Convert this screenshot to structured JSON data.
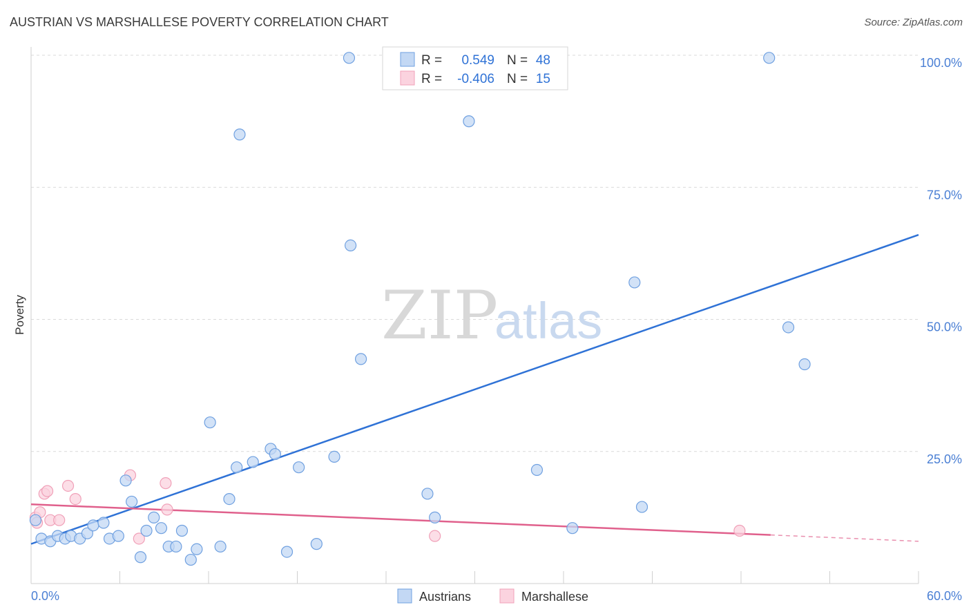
{
  "title": "AUSTRIAN VS MARSHALLESE POVERTY CORRELATION CHART",
  "source": "Source: ZipAtlas.com",
  "watermark": {
    "zip": "ZIP",
    "atlas": "atlas"
  },
  "colors": {
    "austrians": "#6fa0e0",
    "austrians_fill": "#c3d8f4",
    "austrians_line": "#2f72d6",
    "marshallese": "#f0a0b8",
    "marshallese_fill": "#fbd3df",
    "marshallese_line": "#e0608c",
    "tick": "#4a7fd4"
  },
  "legend": {
    "rows": [
      {
        "r_label": "R =",
        "r_value": "0.549",
        "n_label": "N =",
        "n_value": "48"
      },
      {
        "r_label": "R =",
        "r_value": "-0.406",
        "n_label": "N =",
        "n_value": "15"
      }
    ]
  },
  "bottom_legend": {
    "austrians": "Austrians",
    "marshallese": "Marshallese"
  },
  "chart_data": {
    "type": "scatter",
    "xlabel": "",
    "ylabel": "Poverty",
    "xlim": [
      0,
      60
    ],
    "ylim": [
      0,
      100
    ],
    "x_tick_labels": [
      "0.0%",
      "60.0%"
    ],
    "y_tick_labels": [
      "100.0%",
      "75.0%",
      "50.0%",
      "25.0%"
    ],
    "y_ticks": [
      100,
      75,
      50,
      25
    ],
    "grid": true,
    "legend_position": "top-center",
    "series": [
      {
        "name": "Austrians",
        "r": 0.549,
        "n": 48,
        "trend": {
          "x0": 0,
          "y0": 7.5,
          "x1": 60,
          "y1": 66
        },
        "points": [
          [
            0.3,
            12
          ],
          [
            0.7,
            8.5
          ],
          [
            1.3,
            8
          ],
          [
            1.8,
            9
          ],
          [
            2.3,
            8.5
          ],
          [
            2.7,
            9
          ],
          [
            3.3,
            8.5
          ],
          [
            3.8,
            9.5
          ],
          [
            4.2,
            11
          ],
          [
            4.9,
            11.5
          ],
          [
            5.3,
            8.5
          ],
          [
            5.9,
            9
          ],
          [
            6.4,
            19.5
          ],
          [
            6.8,
            15.5
          ],
          [
            7.4,
            5
          ],
          [
            7.8,
            10
          ],
          [
            8.3,
            12.5
          ],
          [
            8.8,
            10.5
          ],
          [
            9.3,
            7
          ],
          [
            9.8,
            7
          ],
          [
            10.2,
            10
          ],
          [
            10.8,
            4.5
          ],
          [
            11.2,
            6.5
          ],
          [
            12.1,
            30.5
          ],
          [
            12.8,
            7
          ],
          [
            13.4,
            16
          ],
          [
            13.9,
            22
          ],
          [
            14.1,
            85
          ],
          [
            15.0,
            23
          ],
          [
            16.2,
            25.5
          ],
          [
            16.5,
            24.5
          ],
          [
            17.3,
            6
          ],
          [
            18.1,
            22
          ],
          [
            19.3,
            7.5
          ],
          [
            20.5,
            24
          ],
          [
            21.5,
            99.5
          ],
          [
            21.6,
            64
          ],
          [
            22.3,
            42.5
          ],
          [
            26.8,
            17
          ],
          [
            27.3,
            12.5
          ],
          [
            29.6,
            87.5
          ],
          [
            34.2,
            21.5
          ],
          [
            36.6,
            10.5
          ],
          [
            40.8,
            57
          ],
          [
            41.3,
            14.5
          ],
          [
            49.9,
            99.5
          ],
          [
            51.2,
            48.5
          ],
          [
            52.3,
            41.5
          ]
        ]
      },
      {
        "name": "Marshallese",
        "r": -0.406,
        "n": 15,
        "trend": {
          "x0": 0,
          "y0": 15,
          "x1": 50,
          "y1": 9.2
        },
        "trend_extension": {
          "x0": 50,
          "y0": 9.2,
          "x1": 60,
          "y1": 8
        },
        "points": [
          [
            0.3,
            12.5
          ],
          [
            0.6,
            13.5
          ],
          [
            0.9,
            17
          ],
          [
            1.1,
            17.5
          ],
          [
            1.3,
            12
          ],
          [
            1.9,
            12
          ],
          [
            2.5,
            18.5
          ],
          [
            3.0,
            16
          ],
          [
            6.7,
            20.5
          ],
          [
            7.3,
            8.5
          ],
          [
            9.1,
            19
          ],
          [
            9.2,
            14
          ],
          [
            27.3,
            9
          ],
          [
            47.9,
            10
          ],
          [
            0.4,
            11.5
          ]
        ]
      }
    ]
  }
}
